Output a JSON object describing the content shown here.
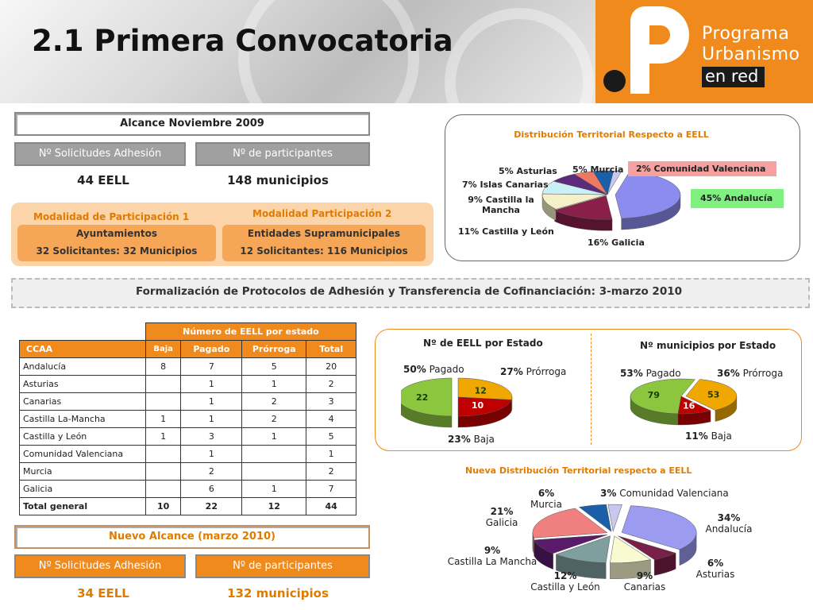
{
  "header": {
    "title": "2.1 Primera Convocatoria",
    "logo": {
      "line1": "Programa",
      "line2": "Urbanismo",
      "line3": "en red"
    }
  },
  "alcance": {
    "title": "Alcance Noviembre 2009",
    "solicitudes_label": "Nº Solicitudes Adhesión",
    "participantes_label": "Nº  de participantes",
    "eell": "44 EELL",
    "municipios": "148 municipios"
  },
  "modalidades": {
    "m1": {
      "title": "Modalidad de Participación 1",
      "line1": "Ayuntamientos",
      "line2": "32 Solicitantes: 32 Municipios"
    },
    "m2": {
      "title": "Modalidad Participación 2",
      "line1": "Entidades Supramunicipales",
      "line2": "12 Solicitantes: 116 Municipios"
    }
  },
  "formalizacion": "Formalización de Protocolos de Adhesión y Transferencia de Cofinanciación:  3-marzo 2010",
  "table": {
    "group_header": "Número de EELL por estado",
    "headers": [
      "CCAA",
      "Baja",
      "Pagado",
      "Prórroga",
      "Total"
    ],
    "rows": [
      [
        "Andalucía",
        "8",
        "7",
        "5",
        "20"
      ],
      [
        "Asturias",
        "",
        "1",
        "1",
        "2"
      ],
      [
        "Canarias",
        "",
        "1",
        "2",
        "3"
      ],
      [
        "Castilla La-Mancha",
        "1",
        "1",
        "2",
        "4"
      ],
      [
        "Castilla y León",
        "1",
        "3",
        "1",
        "5"
      ],
      [
        "Comunidad Valenciana",
        "",
        "1",
        "",
        "1"
      ],
      [
        "Murcia",
        "",
        "2",
        "",
        "2"
      ],
      [
        "Galicia",
        "",
        "6",
        "1",
        "7"
      ]
    ],
    "total": [
      "Total general",
      "10",
      "22",
      "12",
      "44"
    ]
  },
  "nuevo_alcance": {
    "title": "Nuevo Alcance (marzo 2010)",
    "solicitudes_label": "Nº Solicitudes Adhesión",
    "participantes_label": "Nº  de participantes",
    "eell": "34 EELL",
    "municipios": "132 municipios"
  },
  "colors": {
    "orange": "#f08a1d",
    "gray_button": "#a0a0a0",
    "accent_orange_text": "#e07b00"
  },
  "chart_data": [
    {
      "type": "pie",
      "title": "Distribución Territorial Respecto a EELL",
      "categories": [
        "Andalucía",
        "Galicia",
        "Castilla y León",
        "Castilla la Mancha",
        "Islas Canarias",
        "Asturias",
        "Murcia",
        "Comunidad Valenciana"
      ],
      "values": [
        45,
        16,
        11,
        9,
        7,
        5,
        5,
        2
      ],
      "labels": [
        "45% Andalucía",
        "16% Galicia",
        "11% Castilla y León",
        "9% Castilla la Mancha",
        "7% Islas Canarias",
        "5% Asturias",
        "5% Murcia",
        "2% Comunidad Valenciana"
      ],
      "colors": [
        "#8c8cf0",
        "#8a1f4a",
        "#f5f0c8",
        "#c9f0f5",
        "#5b2a7a",
        "#f07860",
        "#1b5fa8",
        "#c8c8ee"
      ]
    },
    {
      "type": "pie",
      "title": "Nº de EELL por Estado",
      "categories": [
        "Pagado",
        "Prórroga",
        "Baja"
      ],
      "values": [
        22,
        12,
        10
      ],
      "pct": [
        "50%",
        "27%",
        "23%"
      ],
      "colors": [
        "#8cc63f",
        "#f0a800",
        "#c00000"
      ]
    },
    {
      "type": "pie",
      "title": "Nº municipios por Estado",
      "categories": [
        "Pagado",
        "Prórroga",
        "Baja"
      ],
      "values": [
        79,
        53,
        16
      ],
      "pct": [
        "53%",
        "36%",
        "11%"
      ],
      "colors": [
        "#8cc63f",
        "#f0a800",
        "#c00000"
      ]
    },
    {
      "type": "pie",
      "title": "Nueva Distribución Territorial respecto a EELL",
      "categories": [
        "Andalucía",
        "Asturias",
        "Canarias",
        "Castilla y León",
        "Castilla La Mancha",
        "Galicia",
        "Murcia",
        "Comunidad Valenciana"
      ],
      "values": [
        34,
        6,
        9,
        12,
        9,
        21,
        6,
        3
      ],
      "pct": [
        "34%",
        "6%",
        "9%",
        "12%",
        "9%",
        "21%",
        "6%",
        "3%"
      ],
      "colors": [
        "#9b9bf2",
        "#7a1f47",
        "#fafad2",
        "#7f9f9f",
        "#5a1a6a",
        "#f08080",
        "#1b5fa8",
        "#c8c8ee"
      ]
    }
  ]
}
